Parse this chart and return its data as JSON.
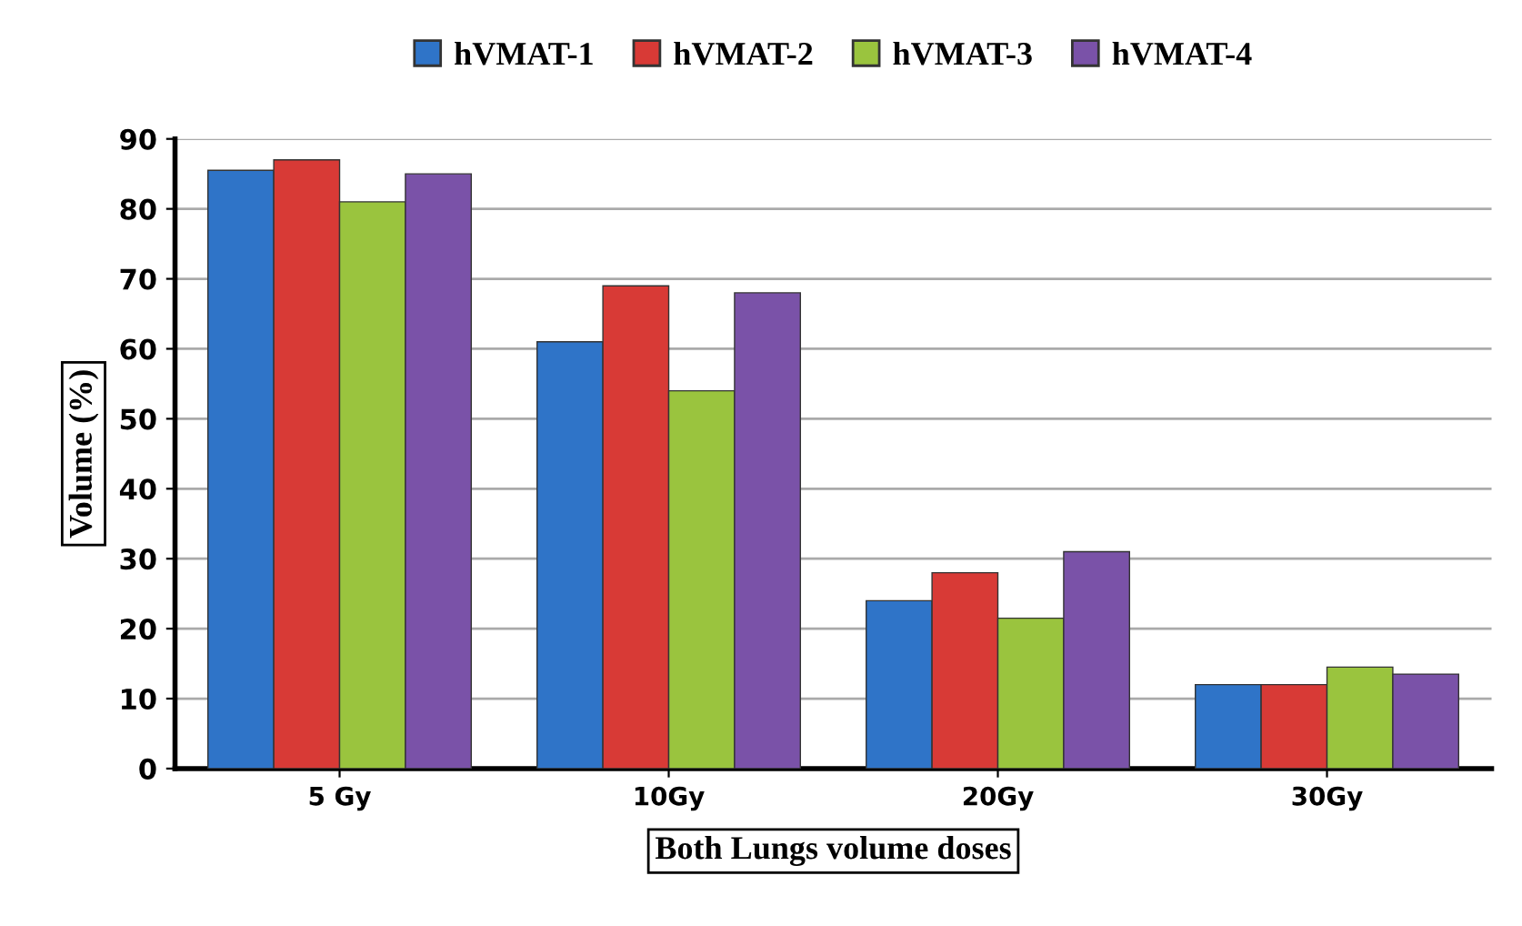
{
  "chart_data": {
    "type": "bar",
    "xlabel": "Both Lungs volume doses",
    "ylabel": "Volume (%)",
    "categories": [
      "5 Gy",
      "10Gy",
      "20Gy",
      "30Gy"
    ],
    "series": [
      {
        "name": "hVMAT-1",
        "color": "#2f74c8",
        "values": [
          85.5,
          61,
          24,
          12
        ]
      },
      {
        "name": "hVMAT-2",
        "color": "#d83a36",
        "values": [
          87,
          69,
          28,
          12
        ]
      },
      {
        "name": "hVMAT-3",
        "color": "#9ac43e",
        "values": [
          81,
          54,
          21.5,
          14.5
        ]
      },
      {
        "name": "hVMAT-4",
        "color": "#7a52a8",
        "values": [
          85,
          68,
          31,
          13.5
        ]
      }
    ],
    "ylim": [
      0,
      90
    ],
    "yticks": [
      0,
      10,
      20,
      30,
      40,
      50,
      60,
      70,
      80,
      90
    ],
    "grid": "y",
    "legend": "top"
  }
}
